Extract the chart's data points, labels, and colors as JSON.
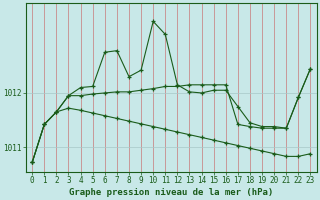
{
  "title": "Graphe pression niveau de la mer (hPa)",
  "bg_color": "#c8e8e8",
  "line_color": "#1a5c1a",
  "xgrid_color": "#c87878",
  "ygrid_color": "#a8c8c8",
  "spine_color": "#1a5c1a",
  "tick_color": "#1a5c1a",
  "xlim": [
    0,
    23
  ],
  "ylim": [
    1010.55,
    1013.65
  ],
  "yticks": [
    1011,
    1012
  ],
  "xticks": [
    0,
    1,
    2,
    3,
    4,
    5,
    6,
    7,
    8,
    9,
    10,
    11,
    12,
    13,
    14,
    15,
    16,
    17,
    18,
    19,
    20,
    21,
    22,
    23
  ],
  "line1_x": [
    0,
    1,
    2,
    3,
    4,
    5,
    6,
    7,
    8,
    9,
    10,
    11,
    12,
    13,
    14,
    15,
    16,
    17,
    18,
    19,
    20,
    21,
    22,
    23
  ],
  "line1_y": [
    1010.72,
    1011.42,
    1011.65,
    1011.72,
    1011.68,
    1011.63,
    1011.58,
    1011.53,
    1011.48,
    1011.43,
    1011.38,
    1011.33,
    1011.28,
    1011.23,
    1011.18,
    1011.13,
    1011.08,
    1011.03,
    1010.98,
    1010.93,
    1010.88,
    1010.83,
    1010.83,
    1010.88
  ],
  "line2_x": [
    0,
    1,
    2,
    3,
    4,
    5,
    6,
    7,
    8,
    9,
    10,
    11,
    12,
    13,
    14,
    15,
    16,
    17,
    18,
    19,
    20,
    21,
    22,
    23
  ],
  "line2_y": [
    1010.72,
    1011.42,
    1011.65,
    1011.95,
    1012.1,
    1012.12,
    1012.75,
    1012.78,
    1012.3,
    1012.42,
    1013.32,
    1013.08,
    1012.15,
    1012.02,
    1012.0,
    1012.05,
    1012.05,
    1011.75,
    1011.45,
    1011.38,
    1011.38,
    1011.35,
    1011.92,
    1012.45
  ],
  "line3_x": [
    0,
    1,
    2,
    3,
    4,
    5,
    6,
    7,
    8,
    9,
    10,
    11,
    12,
    13,
    14,
    15,
    16,
    17,
    18,
    19,
    20,
    21,
    22,
    23
  ],
  "line3_y": [
    1010.72,
    1011.42,
    1011.65,
    1011.95,
    1011.95,
    1011.98,
    1012.0,
    1012.02,
    1012.02,
    1012.05,
    1012.08,
    1012.12,
    1012.12,
    1012.15,
    1012.15,
    1012.15,
    1012.15,
    1011.42,
    1011.38,
    1011.35,
    1011.35,
    1011.35,
    1011.92,
    1012.45
  ],
  "title_fontsize": 6.5,
  "tick_fontsize": 5.5
}
